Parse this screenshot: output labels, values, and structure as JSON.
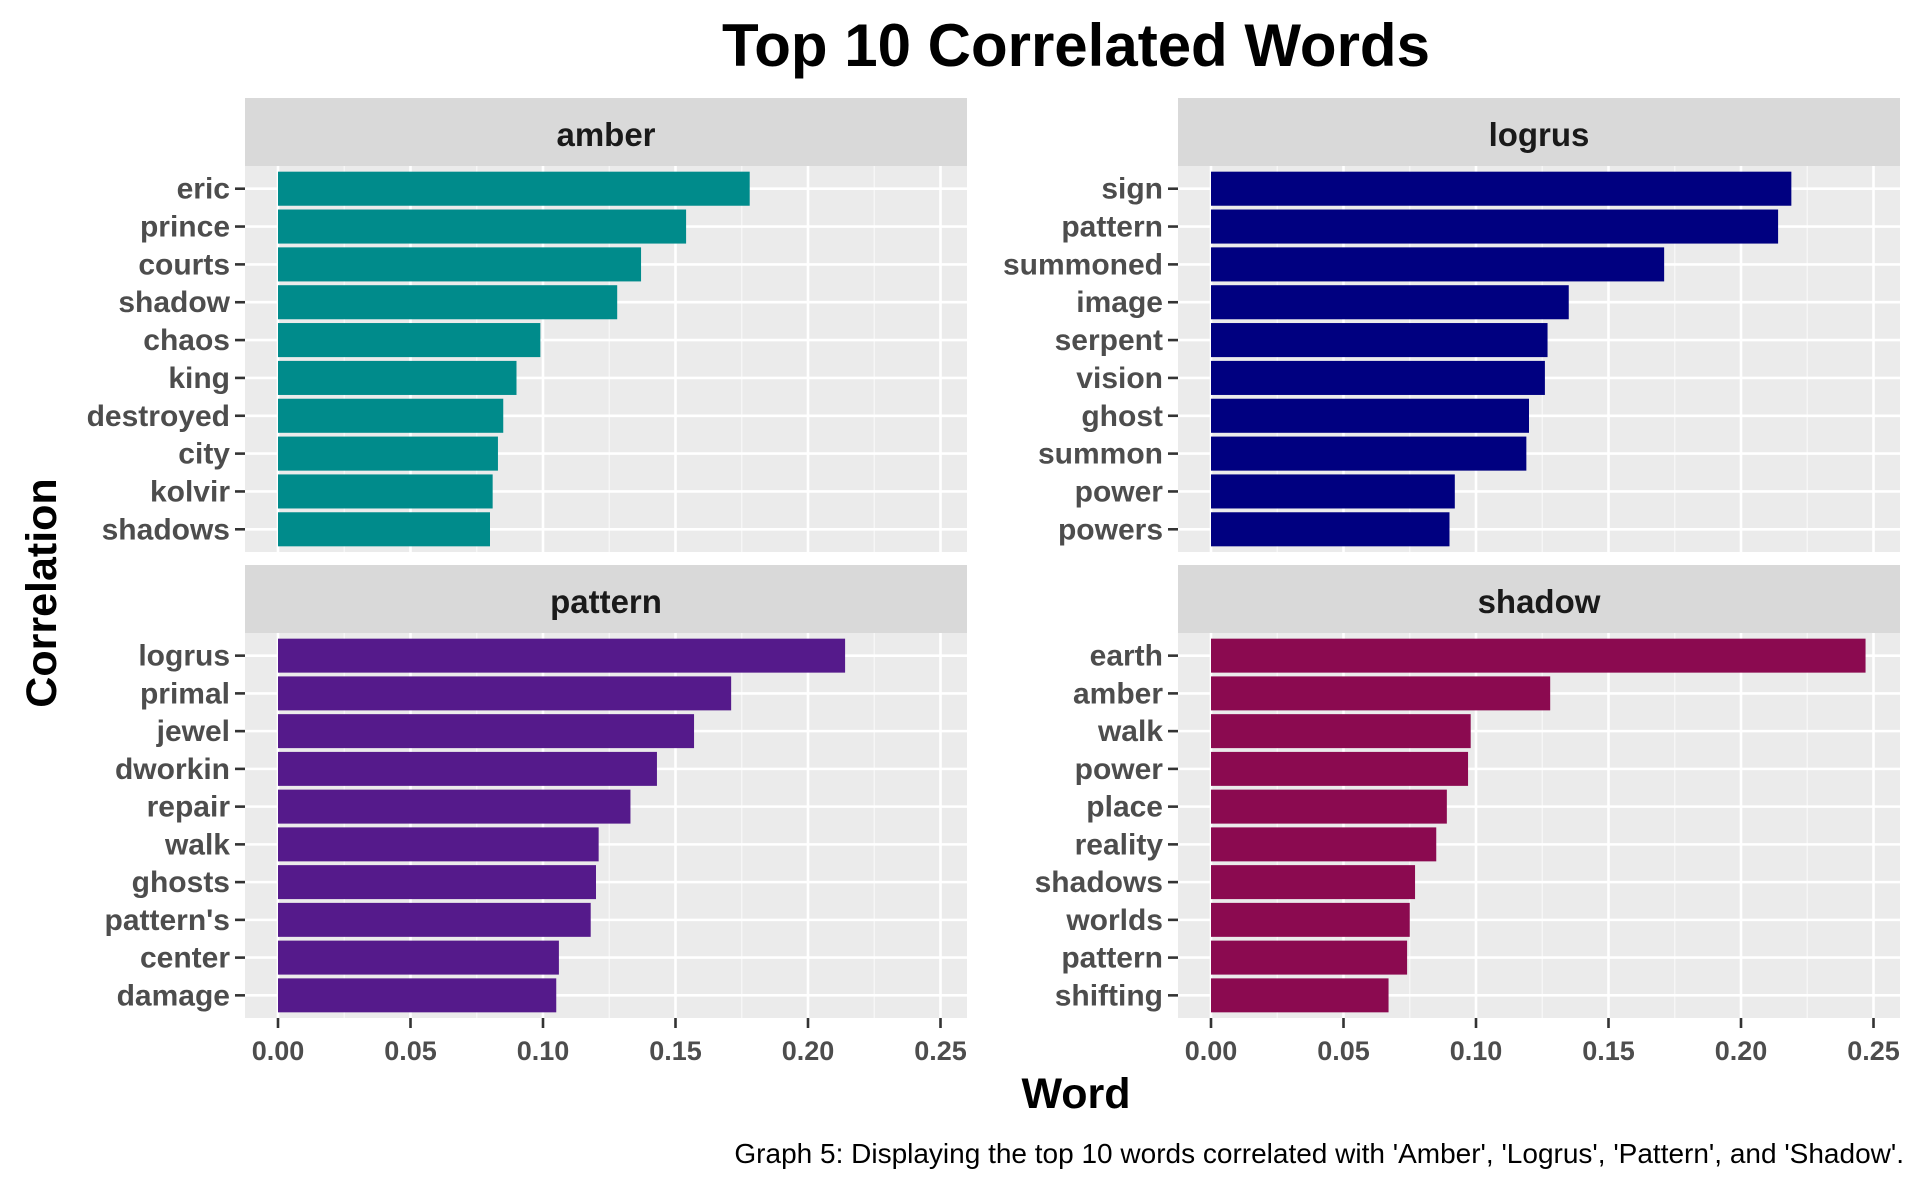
{
  "chart_data": {
    "type": "bar",
    "orientation": "horizontal",
    "title": "Top 10 Correlated Words",
    "xlabel": "Word",
    "ylabel": "Correlation",
    "xlim": [
      0,
      0.25
    ],
    "xticks": [
      "0.00",
      "0.05",
      "0.10",
      "0.15",
      "0.20",
      "0.25"
    ],
    "grid": true,
    "caption": "Graph 5: Displaying the top 10 words correlated with 'Amber', 'Logrus', 'Pattern', and 'Shadow'.",
    "panels": [
      {
        "name": "amber",
        "color": "#008B8B",
        "categories": [
          "eric",
          "prince",
          "courts",
          "shadow",
          "chaos",
          "king",
          "destroyed",
          "city",
          "kolvir",
          "shadows"
        ],
        "values": [
          0.178,
          0.154,
          0.137,
          0.128,
          0.099,
          0.09,
          0.085,
          0.083,
          0.081,
          0.08
        ]
      },
      {
        "name": "logrus",
        "color": "#000080",
        "categories": [
          "sign",
          "pattern",
          "summoned",
          "image",
          "serpent",
          "vision",
          "ghost",
          "summon",
          "power",
          "powers"
        ],
        "values": [
          0.219,
          0.214,
          0.171,
          0.135,
          0.127,
          0.126,
          0.12,
          0.119,
          0.092,
          0.09
        ]
      },
      {
        "name": "pattern",
        "color": "#551A8B",
        "categories": [
          "logrus",
          "primal",
          "jewel",
          "dworkin",
          "repair",
          "walk",
          "ghosts",
          "pattern's",
          "center",
          "damage"
        ],
        "values": [
          0.214,
          0.171,
          0.157,
          0.143,
          0.133,
          0.121,
          0.12,
          0.118,
          0.106,
          0.105
        ]
      },
      {
        "name": "shadow",
        "color": "#8B0A50",
        "categories": [
          "earth",
          "amber",
          "walk",
          "power",
          "place",
          "reality",
          "shadows",
          "worlds",
          "pattern",
          "shifting"
        ],
        "values": [
          0.247,
          0.128,
          0.098,
          0.097,
          0.089,
          0.085,
          0.077,
          0.075,
          0.074,
          0.067
        ]
      }
    ]
  }
}
